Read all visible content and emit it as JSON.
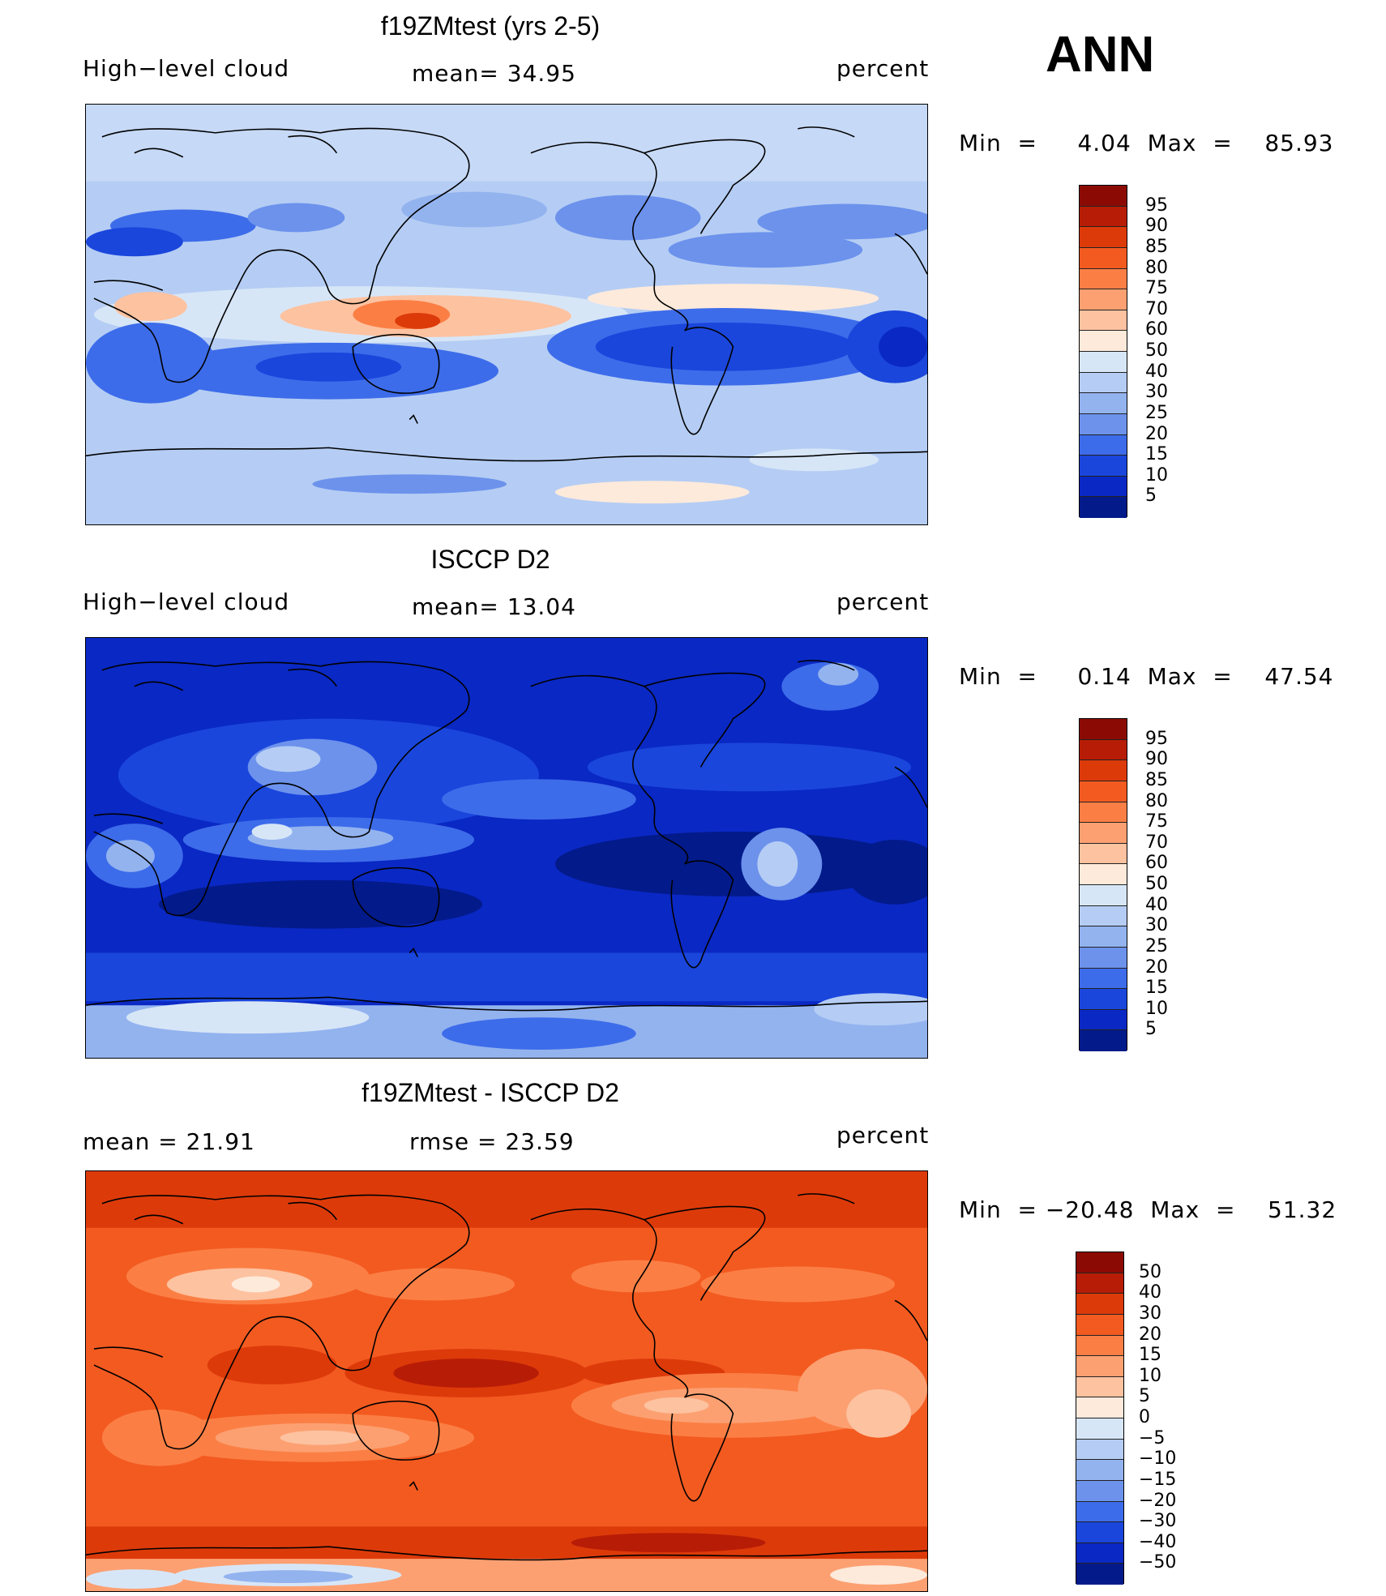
{
  "season": "ANN",
  "panels": [
    {
      "title": "f19ZMtest (yrs 2-5)",
      "left_label": "High−level cloud",
      "center_label": "mean=   34.95",
      "right_label": "percent",
      "min_text": "Min  =     4.04  Max  =    85.93",
      "colorbar": {
        "labels": [
          "95",
          "90",
          "85",
          "80",
          "75",
          "70",
          "60",
          "50",
          "40",
          "30",
          "25",
          "20",
          "15",
          "10",
          "5"
        ],
        "colors": [
          "#8b0b04",
          "#b71c06",
          "#dd3a0a",
          "#f35a20",
          "#fb7f45",
          "#fca072",
          "#fdc2a0",
          "#feeadb",
          "#d7e6f7",
          "#b5cdf4",
          "#93b3ef",
          "#6c92ec",
          "#3d6cea",
          "#1a46dc",
          "#0a28c4",
          "#031a8a"
        ]
      },
      "style": "model"
    },
    {
      "title": "ISCCP D2",
      "left_label": "High−level cloud",
      "center_label": "mean=   13.04",
      "right_label": "percent",
      "min_text": "Min  =     0.14  Max  =    47.54",
      "colorbar": {
        "labels": [
          "95",
          "90",
          "85",
          "80",
          "75",
          "70",
          "60",
          "50",
          "40",
          "30",
          "25",
          "20",
          "15",
          "10",
          "5"
        ],
        "colors": [
          "#8b0b04",
          "#b71c06",
          "#dd3a0a",
          "#f35a20",
          "#fb7f45",
          "#fca072",
          "#fdc2a0",
          "#feeadb",
          "#d7e6f7",
          "#b5cdf4",
          "#93b3ef",
          "#6c92ec",
          "#3d6cea",
          "#1a46dc",
          "#0a28c4",
          "#031a8a"
        ]
      },
      "style": "obs"
    },
    {
      "title": "f19ZMtest - ISCCP D2",
      "left_label": "mean  =    21.91",
      "center_label": "rmse  =    23.59",
      "right_label": "percent",
      "min_text": "Min  = −20.48  Max  =    51.32",
      "colorbar": {
        "labels": [
          "50",
          "40",
          "30",
          "20",
          "15",
          "10",
          "5",
          "0",
          "−5",
          "−10",
          "−15",
          "−20",
          "−30",
          "−40",
          "−50"
        ],
        "colors": [
          "#8b0b04",
          "#b71c06",
          "#dd3a0a",
          "#f35a20",
          "#fb7f45",
          "#fca072",
          "#fdc2a0",
          "#feeadb",
          "#d7e6f7",
          "#b5cdf4",
          "#93b3ef",
          "#6c92ec",
          "#3d6cea",
          "#1a46dc",
          "#0a28c4",
          "#031a8a"
        ]
      },
      "style": "diff"
    }
  ]
}
